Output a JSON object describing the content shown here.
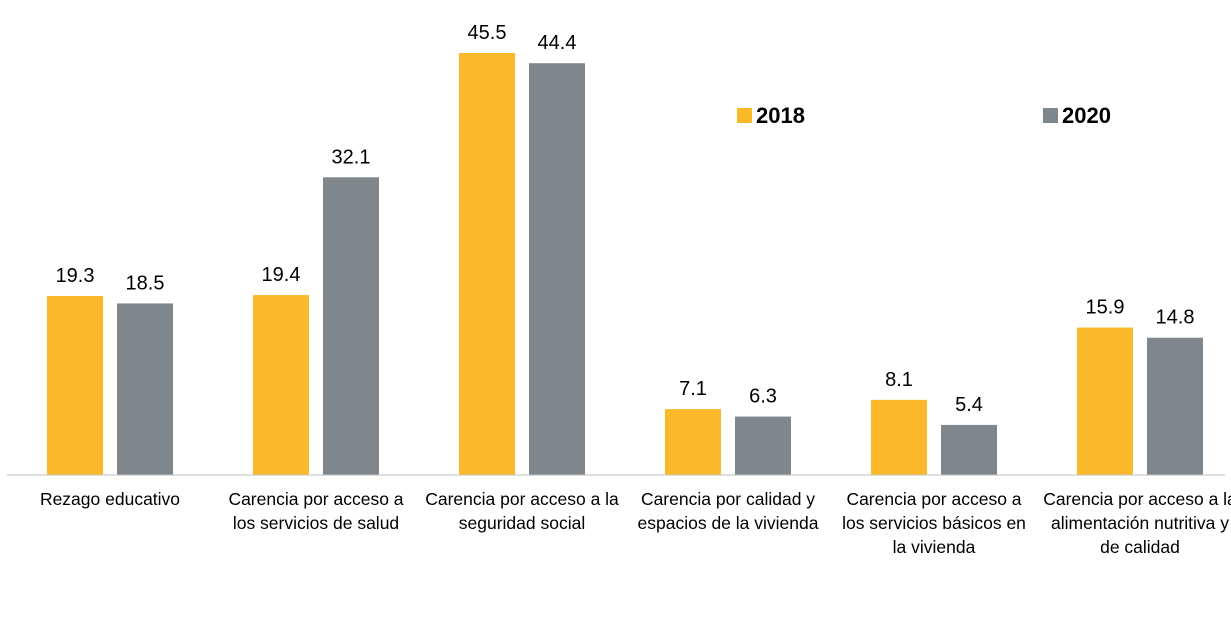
{
  "chart_data": {
    "type": "bar",
    "categories": [
      "Rezago educativo",
      "Carencia por acceso a los servicios de salud",
      "Carencia por acceso a la seguridad social",
      "Carencia por calidad y espacios de la vivienda",
      "Carencia por acceso a los servicios básicos en la vivienda",
      "Carencia por acceso a la alimentación nutritiva y de calidad"
    ],
    "series": [
      {
        "name": "2018",
        "color": "#FBB829",
        "values": [
          19.3,
          19.4,
          45.5,
          7.1,
          8.1,
          15.9
        ]
      },
      {
        "name": "2020",
        "color": "#7F878C",
        "values": [
          18.5,
          32.1,
          44.4,
          6.3,
          5.4,
          14.8
        ]
      }
    ],
    "ylim": [
      0,
      50
    ],
    "legend": "top-right"
  }
}
